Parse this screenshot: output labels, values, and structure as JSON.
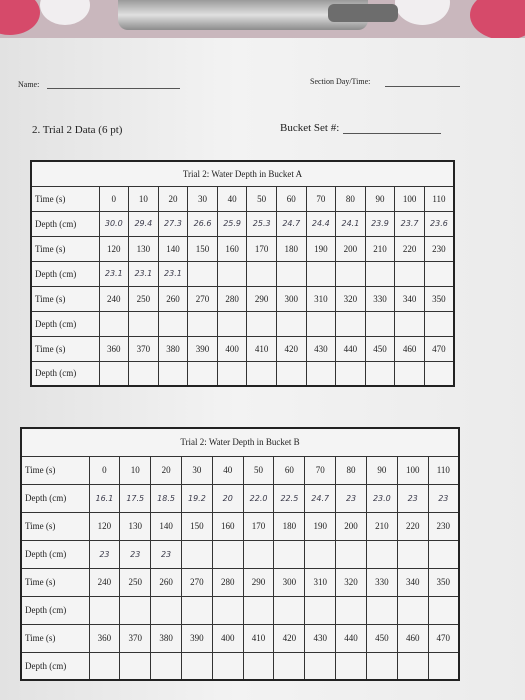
{
  "header": {
    "name_label": "Name:",
    "section_label": "Section Day/Time:"
  },
  "question": {
    "title": "2. Trial 2 Data (6 pt)",
    "bucket_label": "Bucket Set #:"
  },
  "tables": [
    {
      "title": "Trial 2: Water Depth in Bucket A",
      "time_label": "Time (s)",
      "depth_label": "Depth (cm)",
      "blocks": [
        {
          "times": [
            0,
            10,
            20,
            30,
            40,
            50,
            60,
            70,
            80,
            90,
            100,
            110
          ],
          "depths": [
            "30.0",
            "29.4",
            "27.3",
            "26.6",
            "25.9",
            "25.3",
            "24.7",
            "24.4",
            "24.1",
            "23.9",
            "23.7",
            "23.6"
          ]
        },
        {
          "times": [
            120,
            130,
            140,
            150,
            160,
            170,
            180,
            190,
            200,
            210,
            220,
            230
          ],
          "depths": [
            "23.1",
            "23.1",
            "23.1",
            null,
            null,
            null,
            null,
            null,
            null,
            null,
            null,
            null
          ]
        },
        {
          "times": [
            240,
            250,
            260,
            270,
            280,
            290,
            300,
            310,
            320,
            330,
            340,
            350
          ],
          "depths": [
            null,
            null,
            null,
            null,
            null,
            null,
            null,
            null,
            null,
            null,
            null,
            null
          ]
        },
        {
          "times": [
            360,
            370,
            380,
            390,
            400,
            410,
            420,
            430,
            440,
            450,
            460,
            470
          ],
          "depths": [
            null,
            null,
            null,
            null,
            null,
            null,
            null,
            null,
            null,
            null,
            null,
            null
          ]
        }
      ]
    },
    {
      "title": "Trial 2: Water Depth in Bucket B",
      "time_label": "Time (s)",
      "depth_label": "Depth (cm)",
      "blocks": [
        {
          "times": [
            0,
            10,
            20,
            30,
            40,
            50,
            60,
            70,
            80,
            90,
            100,
            110
          ],
          "depths": [
            "16.1",
            "17.5",
            "18.5",
            "19.2",
            "20",
            "22.0",
            "22.5",
            "24.7",
            "23",
            "23.0",
            "23",
            "23"
          ]
        },
        {
          "times": [
            120,
            130,
            140,
            150,
            160,
            170,
            180,
            190,
            200,
            210,
            220,
            230
          ],
          "depths": [
            "23",
            "23",
            "23",
            null,
            null,
            null,
            null,
            null,
            null,
            null,
            null,
            null
          ]
        },
        {
          "times": [
            240,
            250,
            260,
            270,
            280,
            290,
            300,
            310,
            320,
            330,
            340,
            350
          ],
          "depths": [
            null,
            null,
            null,
            null,
            null,
            null,
            null,
            null,
            null,
            null,
            null,
            null
          ]
        },
        {
          "times": [
            360,
            370,
            380,
            390,
            400,
            410,
            420,
            430,
            440,
            450,
            460,
            470
          ],
          "depths": [
            null,
            null,
            null,
            null,
            null,
            null,
            null,
            null,
            null,
            null,
            null,
            null
          ]
        }
      ]
    }
  ]
}
